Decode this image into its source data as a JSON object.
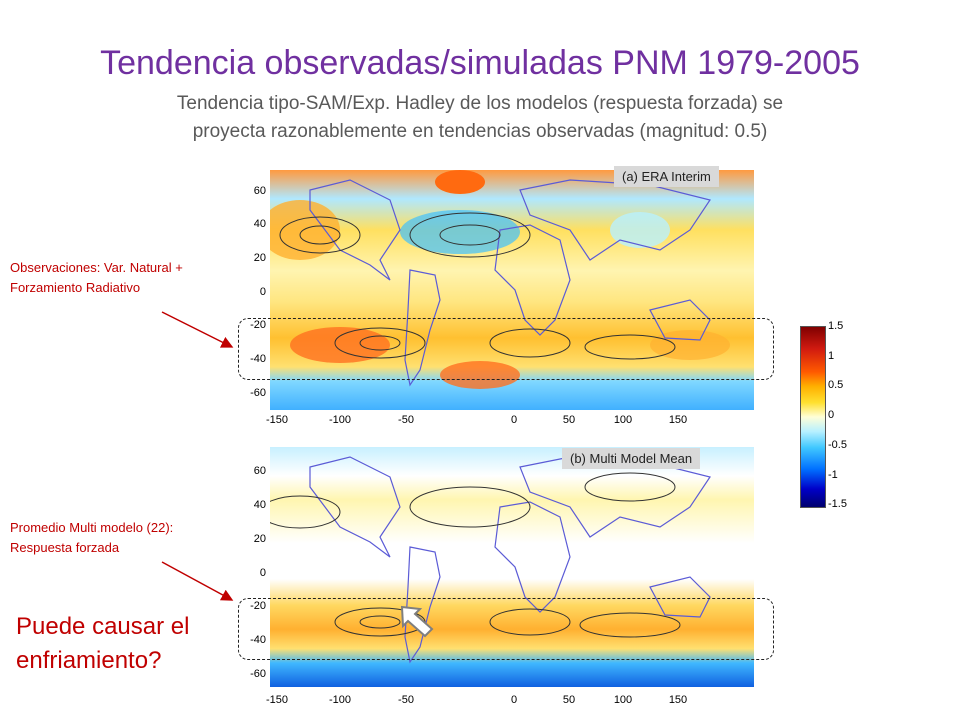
{
  "title": "Tendencia observadas/simuladas PNM 1979-2005",
  "subtitle_line1": "Tendencia tipo-SAM/Exp. Hadley  de los modelos (respuesta forzada) se",
  "subtitle_line2": "proyecta razonablemente en tendencias observadas (magnitud: 0.5)",
  "panel_a": {
    "label": "(a) ERA Interim"
  },
  "panel_b": {
    "label": "(b) Multi Model Mean"
  },
  "y_ticks": [
    "60",
    "40",
    "20",
    "0",
    "-20",
    "-40",
    "-60"
  ],
  "x_ticks": [
    "-150",
    "-100",
    "-50",
    "0",
    "50",
    "100",
    "150"
  ],
  "colorbar_ticks": [
    "1.5",
    "1",
    "0.5",
    "0",
    "-0.5",
    "-1",
    "-1.5"
  ],
  "note_a": {
    "line1": "Observaciones: Var. Natural +",
    "line2": "Forzamiento Radiativo"
  },
  "note_b": {
    "line1": "Promedio Multi modelo (22):",
    "line2": "Respuesta forzada"
  },
  "question": {
    "line1": "Puede causar el",
    "line2": "enfriamiento?"
  },
  "colors": {
    "title": "#7030a0",
    "subtitle": "#595959",
    "annotation": "#c00000",
    "continents": "#5b5bd6"
  }
}
